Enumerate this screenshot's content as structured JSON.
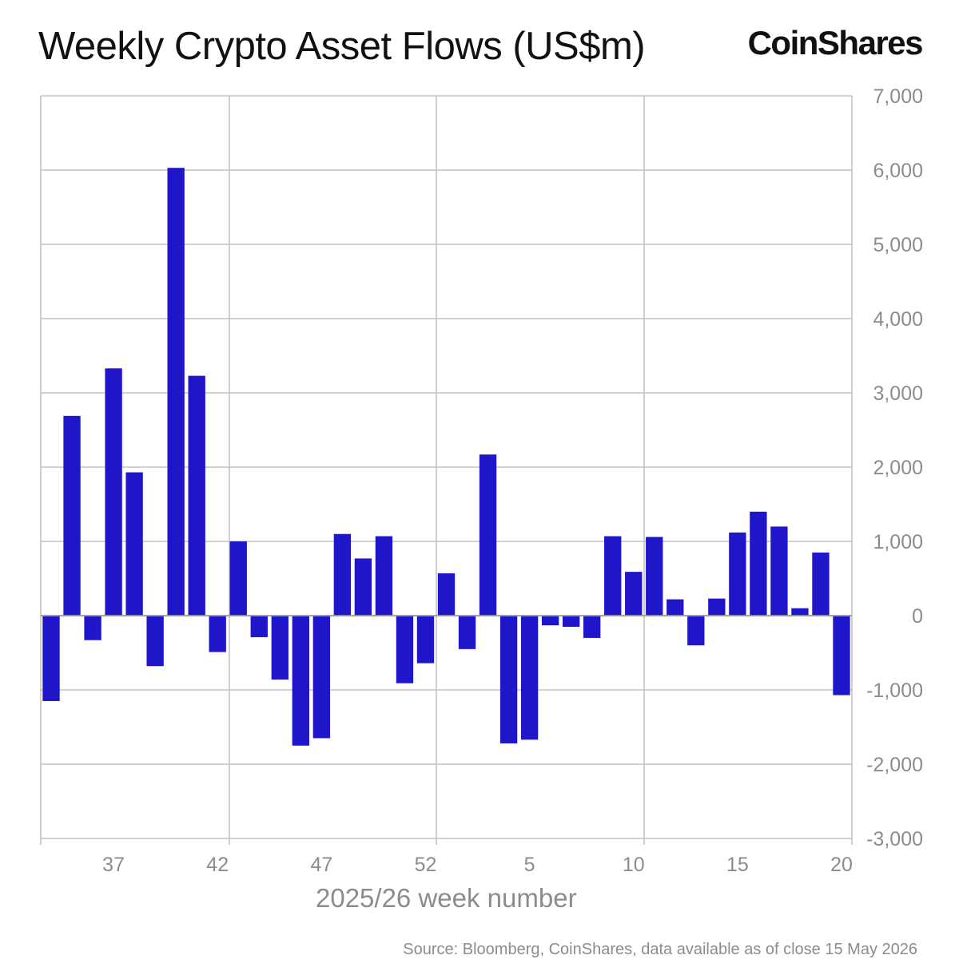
{
  "header": {
    "title": "Weekly Crypto Asset Flows (US$m)",
    "brand": "CoinShares"
  },
  "footer": {
    "source": "Source: Bloomberg, CoinShares, data available as of close 15 May 2026"
  },
  "colors": {
    "bar": "#1f16c9",
    "grid": "#c4c4c4",
    "axis_text": "#8c8c8c"
  },
  "chart_data": {
    "type": "bar",
    "title": "Weekly Crypto Asset Flows (US$m)",
    "xlabel": "2025/26 week number",
    "ylabel": "",
    "ylim": [
      -3000,
      7000
    ],
    "yticks": [
      7000,
      6000,
      5000,
      4000,
      3000,
      2000,
      1000,
      0,
      -1000,
      -2000,
      -3000
    ],
    "ytick_labels": [
      "7,000",
      "6,000",
      "5,000",
      "4,000",
      "3,000",
      "2,000",
      "1,000",
      "0",
      "-1,000",
      "-2,000",
      "-3,000"
    ],
    "xtick_labels": [
      {
        "label": "37",
        "index": 3
      },
      {
        "label": "42",
        "index": 8
      },
      {
        "label": "47",
        "index": 13
      },
      {
        "label": "52",
        "index": 18
      },
      {
        "label": "5",
        "index": 23
      },
      {
        "label": "10",
        "index": 28
      },
      {
        "label": "15",
        "index": 33
      },
      {
        "label": "20",
        "index": 38
      }
    ],
    "grid": true,
    "y_axis_position": "right",
    "categories": [
      "34",
      "35",
      "36",
      "37",
      "38",
      "39",
      "40",
      "41",
      "42",
      "43",
      "44",
      "45",
      "46",
      "47",
      "48",
      "49",
      "50",
      "51",
      "52",
      "1",
      "2",
      "3",
      "4",
      "5",
      "6",
      "7",
      "8",
      "9",
      "10",
      "11",
      "12",
      "13",
      "14",
      "15",
      "16",
      "17",
      "18",
      "19",
      "20"
    ],
    "values": [
      -1150,
      2690,
      -330,
      3330,
      1930,
      -680,
      6030,
      3230,
      -490,
      1000,
      -290,
      -860,
      -1750,
      -1650,
      1100,
      770,
      1070,
      -910,
      -640,
      570,
      -450,
      2170,
      -1720,
      -1670,
      -130,
      -150,
      -300,
      1070,
      590,
      1060,
      220,
      -400,
      230,
      1120,
      1400,
      1200,
      100,
      850,
      -1070
    ]
  }
}
